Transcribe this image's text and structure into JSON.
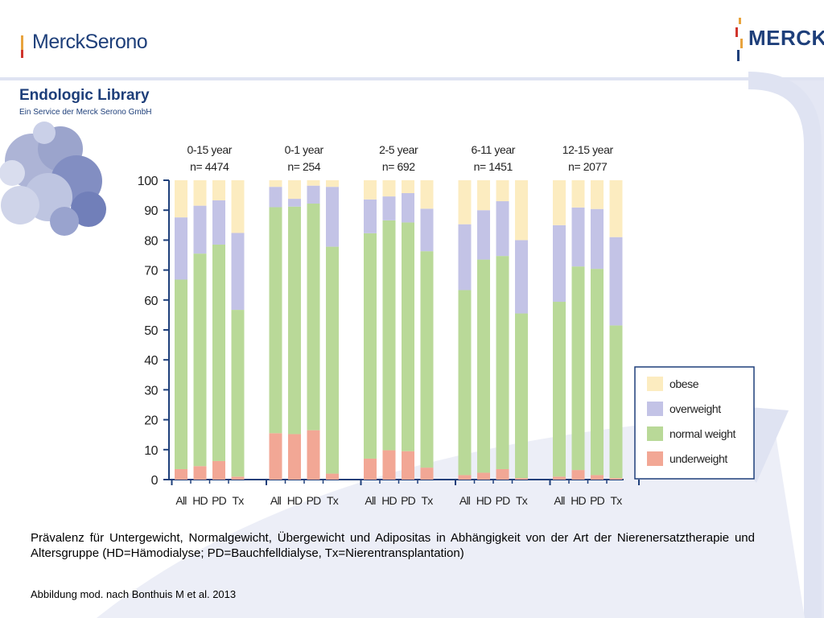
{
  "header": {
    "logo_left": "MerckSerono",
    "logo_right": "MERCK",
    "library_title": "Endologic Library",
    "library_subtitle": "Ein Service der Merck Serono GmbH"
  },
  "colors": {
    "obese": "#fcecc0",
    "overweight": "#c3c3e6",
    "normal weight": "#b9d998",
    "underweight": "#f2a795",
    "axis": "#1e3f7a",
    "background_swoosh": "#dfe3f2"
  },
  "chart_data": {
    "type": "bar",
    "stacked": true,
    "ylim": [
      0,
      100
    ],
    "yticks": [
      0,
      10,
      20,
      30,
      40,
      50,
      60,
      70,
      80,
      90,
      100
    ],
    "legend_position": "right",
    "groups": [
      {
        "label": "0-15 year",
        "n": "n= 4474",
        "categories": [
          "All",
          "HD",
          "PD",
          "Tx"
        ],
        "underweight": [
          3.5,
          4.5,
          6.2,
          1.0
        ],
        "normal weight": [
          63.3,
          71.0,
          72.3,
          55.7
        ],
        "overweight": [
          20.8,
          16.0,
          14.8,
          25.7
        ],
        "obese": [
          12.4,
          8.5,
          6.7,
          17.6
        ]
      },
      {
        "label": "0-1 year",
        "n": "n= 254",
        "categories": [
          "All",
          "HD",
          "PD",
          "Tx"
        ],
        "underweight": [
          15.5,
          15.2,
          16.5,
          2.0
        ],
        "normal weight": [
          75.5,
          76.0,
          75.7,
          75.8
        ],
        "overweight": [
          6.8,
          2.6,
          6.0,
          20.0
        ],
        "obese": [
          2.2,
          6.2,
          1.8,
          2.2
        ]
      },
      {
        "label": "2-5 year",
        "n": "n= 692",
        "categories": [
          "All",
          "HD",
          "PD",
          "Tx"
        ],
        "underweight": [
          7.0,
          9.8,
          9.5,
          4.0
        ],
        "normal weight": [
          75.3,
          76.8,
          76.4,
          72.3
        ],
        "overweight": [
          11.3,
          8.0,
          9.8,
          14.2
        ],
        "obese": [
          6.4,
          5.4,
          4.3,
          9.5
        ]
      },
      {
        "label": "6-11 year",
        "n": "n= 1451",
        "categories": [
          "All",
          "HD",
          "PD",
          "Tx"
        ],
        "underweight": [
          1.5,
          2.3,
          3.5,
          0.5
        ],
        "normal weight": [
          61.8,
          71.2,
          71.2,
          55.0
        ],
        "overweight": [
          22.0,
          16.5,
          18.3,
          24.5
        ],
        "obese": [
          14.7,
          10.0,
          7.0,
          20.0
        ]
      },
      {
        "label": "12-15 year",
        "n": "n= 2077",
        "categories": [
          "All",
          "HD",
          "PD",
          "Tx"
        ],
        "underweight": [
          1.0,
          3.2,
          1.5,
          0.5
        ],
        "normal weight": [
          58.4,
          68.0,
          68.9,
          51.0
        ],
        "overweight": [
          25.6,
          19.7,
          20.0,
          29.5
        ],
        "obese": [
          15.0,
          9.1,
          9.6,
          19.0
        ]
      }
    ],
    "legend": [
      "obese",
      "overweight",
      "normal weight",
      "underweight"
    ]
  },
  "caption": "Prävalenz für Untergewicht, Normalgewicht, Übergewicht und Adipositas in Abhängigkeit von der Art der Nierener­satztherapie und Altersgruppe (HD=Hämodialyse; PD=Bauchfelldialyse, Tx=Nierentransplantation)",
  "source": "Abbildung mod. nach Bonthuis M et al. 2013"
}
